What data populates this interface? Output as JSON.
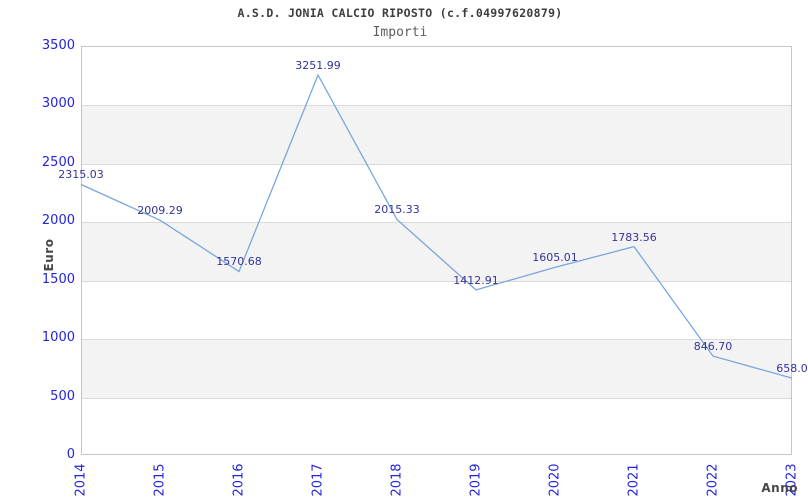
{
  "chart_data": {
    "type": "line",
    "title": "A.S.D. JONIA CALCIO RIPOSTO (c.f.04997620879)",
    "subtitle": "Importi",
    "xlabel": "Anno",
    "ylabel": "Euro",
    "categories": [
      "2014",
      "2015",
      "2016",
      "2017",
      "2018",
      "2019",
      "2020",
      "2021",
      "2022",
      "2023"
    ],
    "series": [
      {
        "name": "Importi",
        "values": [
          2315.03,
          2009.29,
          1570.68,
          3251.99,
          2015.33,
          1412.91,
          1605.01,
          1783.56,
          846.7,
          658.0
        ],
        "point_labels": [
          "2315.03",
          "2009.29",
          "1570.68",
          "3251.99",
          "2015.33",
          "1412.91",
          "1605.01",
          "1783.56",
          "846.70",
          "658.0"
        ]
      }
    ],
    "ylim": [
      0,
      3500
    ],
    "ytick_step": 500,
    "ytick_labels": [
      "0",
      "500",
      "1000",
      "1500",
      "2000",
      "2500",
      "3000",
      "3500"
    ],
    "grid": "horizontal-gridlines-with-alternating-bands",
    "legend": "none",
    "markers": "none",
    "colors": {
      "line": "#79a6de",
      "tick_label": "#2424dd",
      "point_label": "#34349a",
      "band_fill": "#f3f3f3",
      "gridline": "#dadada",
      "plot_border": "#c6c6c6",
      "title": "#3d3d3d",
      "subtitle": "#5f5f5f",
      "axis_title": "#474747",
      "background": "#ffffff"
    }
  }
}
